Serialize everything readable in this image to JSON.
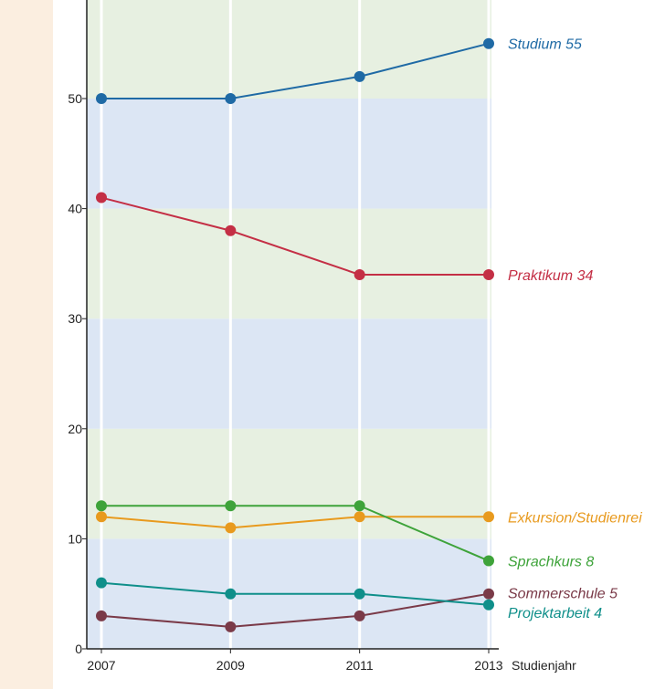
{
  "chart_data": {
    "type": "line",
    "xlabel": "Studienjahr",
    "x": [
      2007,
      2009,
      2011,
      2013
    ],
    "ylim": [
      0,
      60
    ],
    "yticks": [
      0,
      10,
      20,
      30,
      40,
      50
    ],
    "grid": true,
    "series": [
      {
        "name": "Studium",
        "end_label": "Studium 55",
        "color": "#1f6aa5",
        "values": [
          50,
          50,
          52,
          55
        ]
      },
      {
        "name": "Praktikum",
        "end_label": "Praktikum 34",
        "color": "#c42f45",
        "values": [
          41,
          38,
          34,
          34
        ]
      },
      {
        "name": "Exkursion/Studienreise",
        "end_label": "Exkursion/Studienrei",
        "color": "#e89a1e",
        "values": [
          12,
          11,
          12,
          12
        ]
      },
      {
        "name": "Sprachkurs",
        "end_label": "Sprachkurs 8",
        "color": "#3ea33a",
        "values": [
          13,
          13,
          13,
          8
        ]
      },
      {
        "name": "Sommerschule",
        "end_label": "Sommerschule 5",
        "color": "#7a3a48",
        "values": [
          3,
          2,
          3,
          5
        ]
      },
      {
        "name": "Projektarbeit",
        "end_label": "Projektarbeit 4",
        "color": "#0f8f8a",
        "values": [
          6,
          5,
          5,
          4
        ]
      }
    ],
    "band_colors": [
      "#dce6f4",
      "#e7f0e1"
    ]
  }
}
